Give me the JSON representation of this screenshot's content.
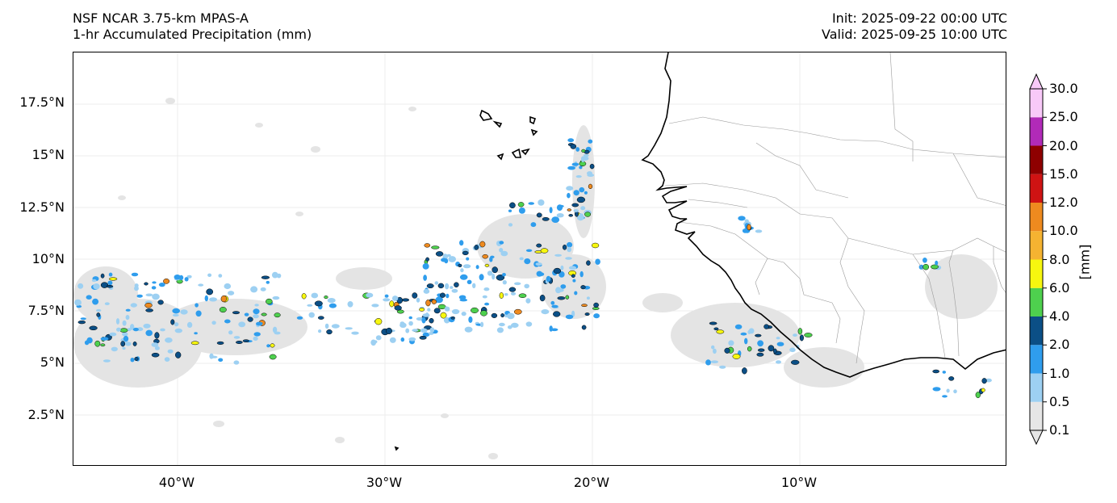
{
  "header": {
    "left_line1": "NSF NCAR 3.75-km MPAS-A",
    "left_line2": "1-hr Accumulated Precipitation (mm)",
    "right_line1": "Init: 2025-09-22 00:00 UTC",
    "right_line2": "Valid: 2025-09-25 10:00 UTC"
  },
  "map": {
    "lon_range": [
      -45,
      0
    ],
    "lat_range": [
      0,
      20
    ],
    "lat_ticks": [
      "17.5°N",
      "15°N",
      "12.5°N",
      "10°N",
      "7.5°N",
      "5°N",
      "2.5°N"
    ],
    "lon_ticks": [
      "40°W",
      "30°W",
      "20°W",
      "10°W"
    ],
    "coastline_color": "#000000",
    "border_color": "#8a8a8a",
    "gridline_color": "#e6e6e6"
  },
  "colorbar": {
    "unit_label": "[mm]",
    "levels": [
      "0.1",
      "0.5",
      "1.0",
      "2.0",
      "4.0",
      "6.0",
      "8.0",
      "10.0",
      "12.0",
      "15.0",
      "20.0",
      "25.0",
      "30.0"
    ],
    "colors": [
      "#e6e6e6",
      "#9dd0f2",
      "#2f9ded",
      "#0b4f86",
      "#4ed04e",
      "#f7f70f",
      "#f5b331",
      "#ee8a1f",
      "#cf1313",
      "#8e0000",
      "#b12ab8",
      "#f8c9f8"
    ]
  }
}
